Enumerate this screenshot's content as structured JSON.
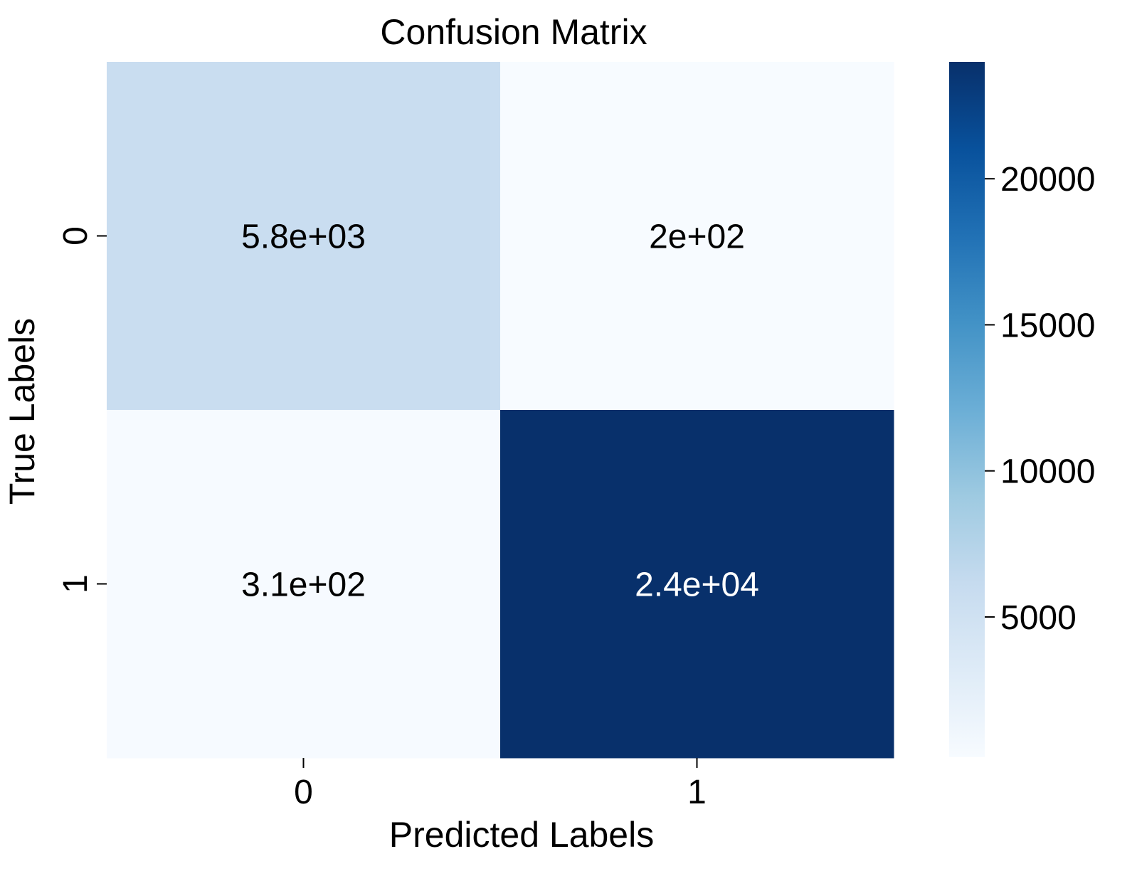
{
  "chart_data": {
    "type": "heatmap",
    "title": "Confusion Matrix",
    "xlabel": "Predicted Labels",
    "ylabel": "True Labels",
    "x_categories": [
      "0",
      "1"
    ],
    "y_categories": [
      "0",
      "1"
    ],
    "values": [
      [
        5800,
        200
      ],
      [
        310,
        24000
      ]
    ],
    "annotations": [
      [
        "5.8e+03",
        "2e+02"
      ],
      [
        "3.1e+02",
        "2.4e+04"
      ]
    ],
    "colormap": "Blues",
    "color_range": [
      200,
      24000
    ],
    "colorbar_ticks": [
      5000,
      10000,
      15000,
      20000
    ],
    "colorbar_tick_labels": [
      "5000",
      "10000",
      "15000",
      "20000"
    ]
  }
}
